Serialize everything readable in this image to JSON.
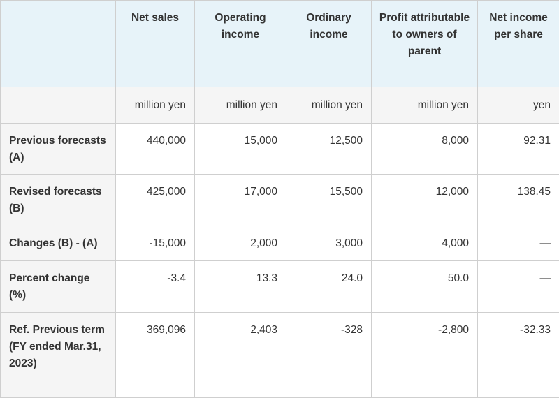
{
  "table": {
    "headers": [
      "",
      "Net sales",
      "Operating income",
      "Ordinary income",
      "Profit attributable to owners of parent",
      "Net income per share"
    ],
    "units": [
      "",
      "million yen",
      "million yen",
      "million yen",
      "million yen",
      "yen"
    ],
    "rows": [
      {
        "label": "Previous forecasts (A)",
        "values": [
          "440,000",
          "15,000",
          "12,500",
          "8,000",
          "92.31"
        ]
      },
      {
        "label": "Revised forecasts (B)",
        "values": [
          "425,000",
          "17,000",
          "15,500",
          "12,000",
          "138.45"
        ]
      },
      {
        "label": "Changes (B) - (A)",
        "values": [
          "-15,000",
          "2,000",
          "3,000",
          "4,000",
          "—"
        ]
      },
      {
        "label": "Percent change (%)",
        "values": [
          "-3.4",
          "13.3",
          "24.0",
          "50.0",
          "—"
        ]
      },
      {
        "label": "Ref. Previous term (FY ended Mar.31, 2023)",
        "values": [
          "369,096",
          "2,403",
          "-328",
          "-2,800",
          "-32.33"
        ]
      }
    ]
  }
}
